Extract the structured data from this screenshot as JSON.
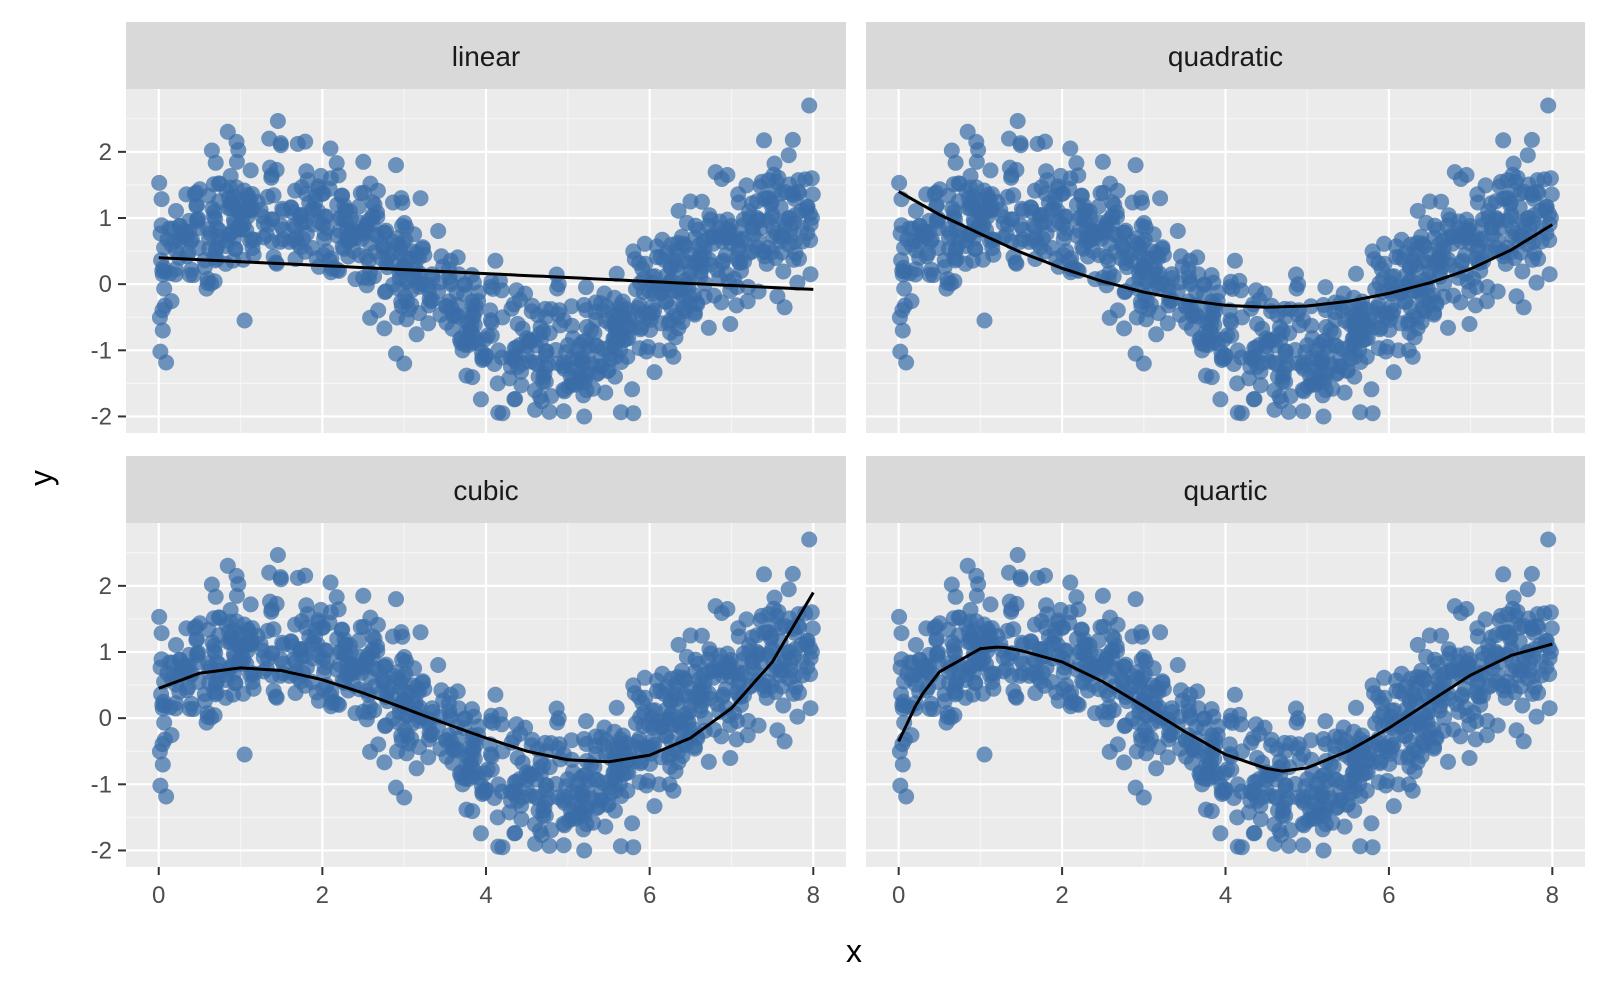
{
  "chart_data": {
    "type": "scatter",
    "layout": "facet-grid 2x2",
    "xlabel": "x",
    "ylabel": "y",
    "xlim": [
      -0.4,
      8.4
    ],
    "ylim": [
      -2.25,
      2.95
    ],
    "x_ticks": [
      0,
      2,
      4,
      6,
      8
    ],
    "y_ticks": [
      -2,
      -1,
      0,
      1,
      2
    ],
    "x_tick_labels": [
      "0",
      "2",
      "4",
      "6",
      "8"
    ],
    "y_tick_labels": [
      "-2",
      "-1",
      "0",
      "1",
      "2"
    ],
    "grid": true,
    "point_color": "#3a6ea8",
    "line_color": "#000000",
    "panel_bg": "#ebebeb",
    "strip_bg": "#d9d9d9",
    "facets": [
      "linear",
      "quadratic",
      "cubic",
      "quartic"
    ],
    "fits": [
      {
        "x": [
          0,
          1,
          2,
          3,
          4,
          5,
          6,
          7,
          8
        ],
        "y": [
          0.4,
          0.34,
          0.28,
          0.22,
          0.16,
          0.1,
          0.04,
          -0.02,
          -0.08
        ]
      },
      {
        "x": [
          0,
          0.5,
          1,
          1.5,
          2,
          2.5,
          3,
          3.5,
          4,
          4.5,
          5,
          5.5,
          6,
          6.5,
          7,
          7.5,
          8
        ],
        "y": [
          1.4,
          1.05,
          0.76,
          0.48,
          0.24,
          0.04,
          -0.12,
          -0.24,
          -0.32,
          -0.35,
          -0.33,
          -0.26,
          -0.14,
          0.02,
          0.23,
          0.52,
          0.9
        ]
      },
      {
        "x": [
          0,
          0.5,
          1,
          1.5,
          2,
          2.5,
          3,
          3.5,
          4,
          4.5,
          5,
          5.5,
          6,
          6.5,
          7,
          7.5,
          8
        ],
        "y": [
          0.45,
          0.68,
          0.76,
          0.72,
          0.58,
          0.38,
          0.15,
          -0.08,
          -0.3,
          -0.5,
          -0.63,
          -0.66,
          -0.56,
          -0.3,
          0.15,
          0.85,
          1.9
        ]
      },
      {
        "x": [
          0,
          0.25,
          0.5,
          1,
          1.25,
          1.5,
          2,
          2.5,
          3,
          3.5,
          4,
          4.5,
          4.7,
          5,
          5.5,
          6,
          6.5,
          7,
          7.5,
          8
        ],
        "y": [
          -0.35,
          0.3,
          0.7,
          1.05,
          1.08,
          1.02,
          0.85,
          0.55,
          0.18,
          -0.2,
          -0.55,
          -0.76,
          -0.8,
          -0.75,
          -0.5,
          -0.15,
          0.25,
          0.65,
          0.95,
          1.12
        ]
      }
    ],
    "scatter_trend": {
      "x": [
        0,
        0.5,
        1,
        1.5,
        2,
        2.5,
        3,
        3.5,
        4,
        4.5,
        5,
        5.5,
        6,
        6.5,
        7,
        7.5,
        8
      ],
      "y": [
        0.3,
        0.75,
        1.0,
        1.05,
        0.9,
        0.65,
        0.2,
        -0.25,
        -0.7,
        -1.0,
        -1.0,
        -0.8,
        -0.3,
        0.2,
        0.6,
        0.95,
        1.1
      ],
      "spread": 0.45,
      "n": 900
    },
    "highlight_points": [
      {
        "x": 7.95,
        "y": 2.7
      },
      {
        "x": 1.35,
        "y": 2.2
      },
      {
        "x": 0.95,
        "y": 2.15
      },
      {
        "x": 1.7,
        "y": 2.12
      },
      {
        "x": 2.1,
        "y": 2.05
      },
      {
        "x": 0.65,
        "y": 2.02
      },
      {
        "x": 7.75,
        "y": 2.18
      },
      {
        "x": 7.7,
        "y": 1.95
      },
      {
        "x": 2.5,
        "y": 1.85
      },
      {
        "x": 2.9,
        "y": 1.8
      },
      {
        "x": 3.2,
        "y": 1.3
      },
      {
        "x": 0.02,
        "y": -1.02
      },
      {
        "x": 0.05,
        "y": -0.7
      },
      {
        "x": 1.05,
        "y": -0.55
      },
      {
        "x": 7.65,
        "y": -0.35
      },
      {
        "x": 5.2,
        "y": -2.0
      },
      {
        "x": 4.2,
        "y": -1.95
      },
      {
        "x": 4.95,
        "y": -1.92
      },
      {
        "x": 4.6,
        "y": -1.9
      },
      {
        "x": 5.8,
        "y": -1.95
      },
      {
        "x": 3.0,
        "y": -1.2
      },
      {
        "x": 2.9,
        "y": -1.05
      },
      {
        "x": 6.5,
        "y": 1.25
      },
      {
        "x": 6.95,
        "y": 1.65
      }
    ]
  }
}
